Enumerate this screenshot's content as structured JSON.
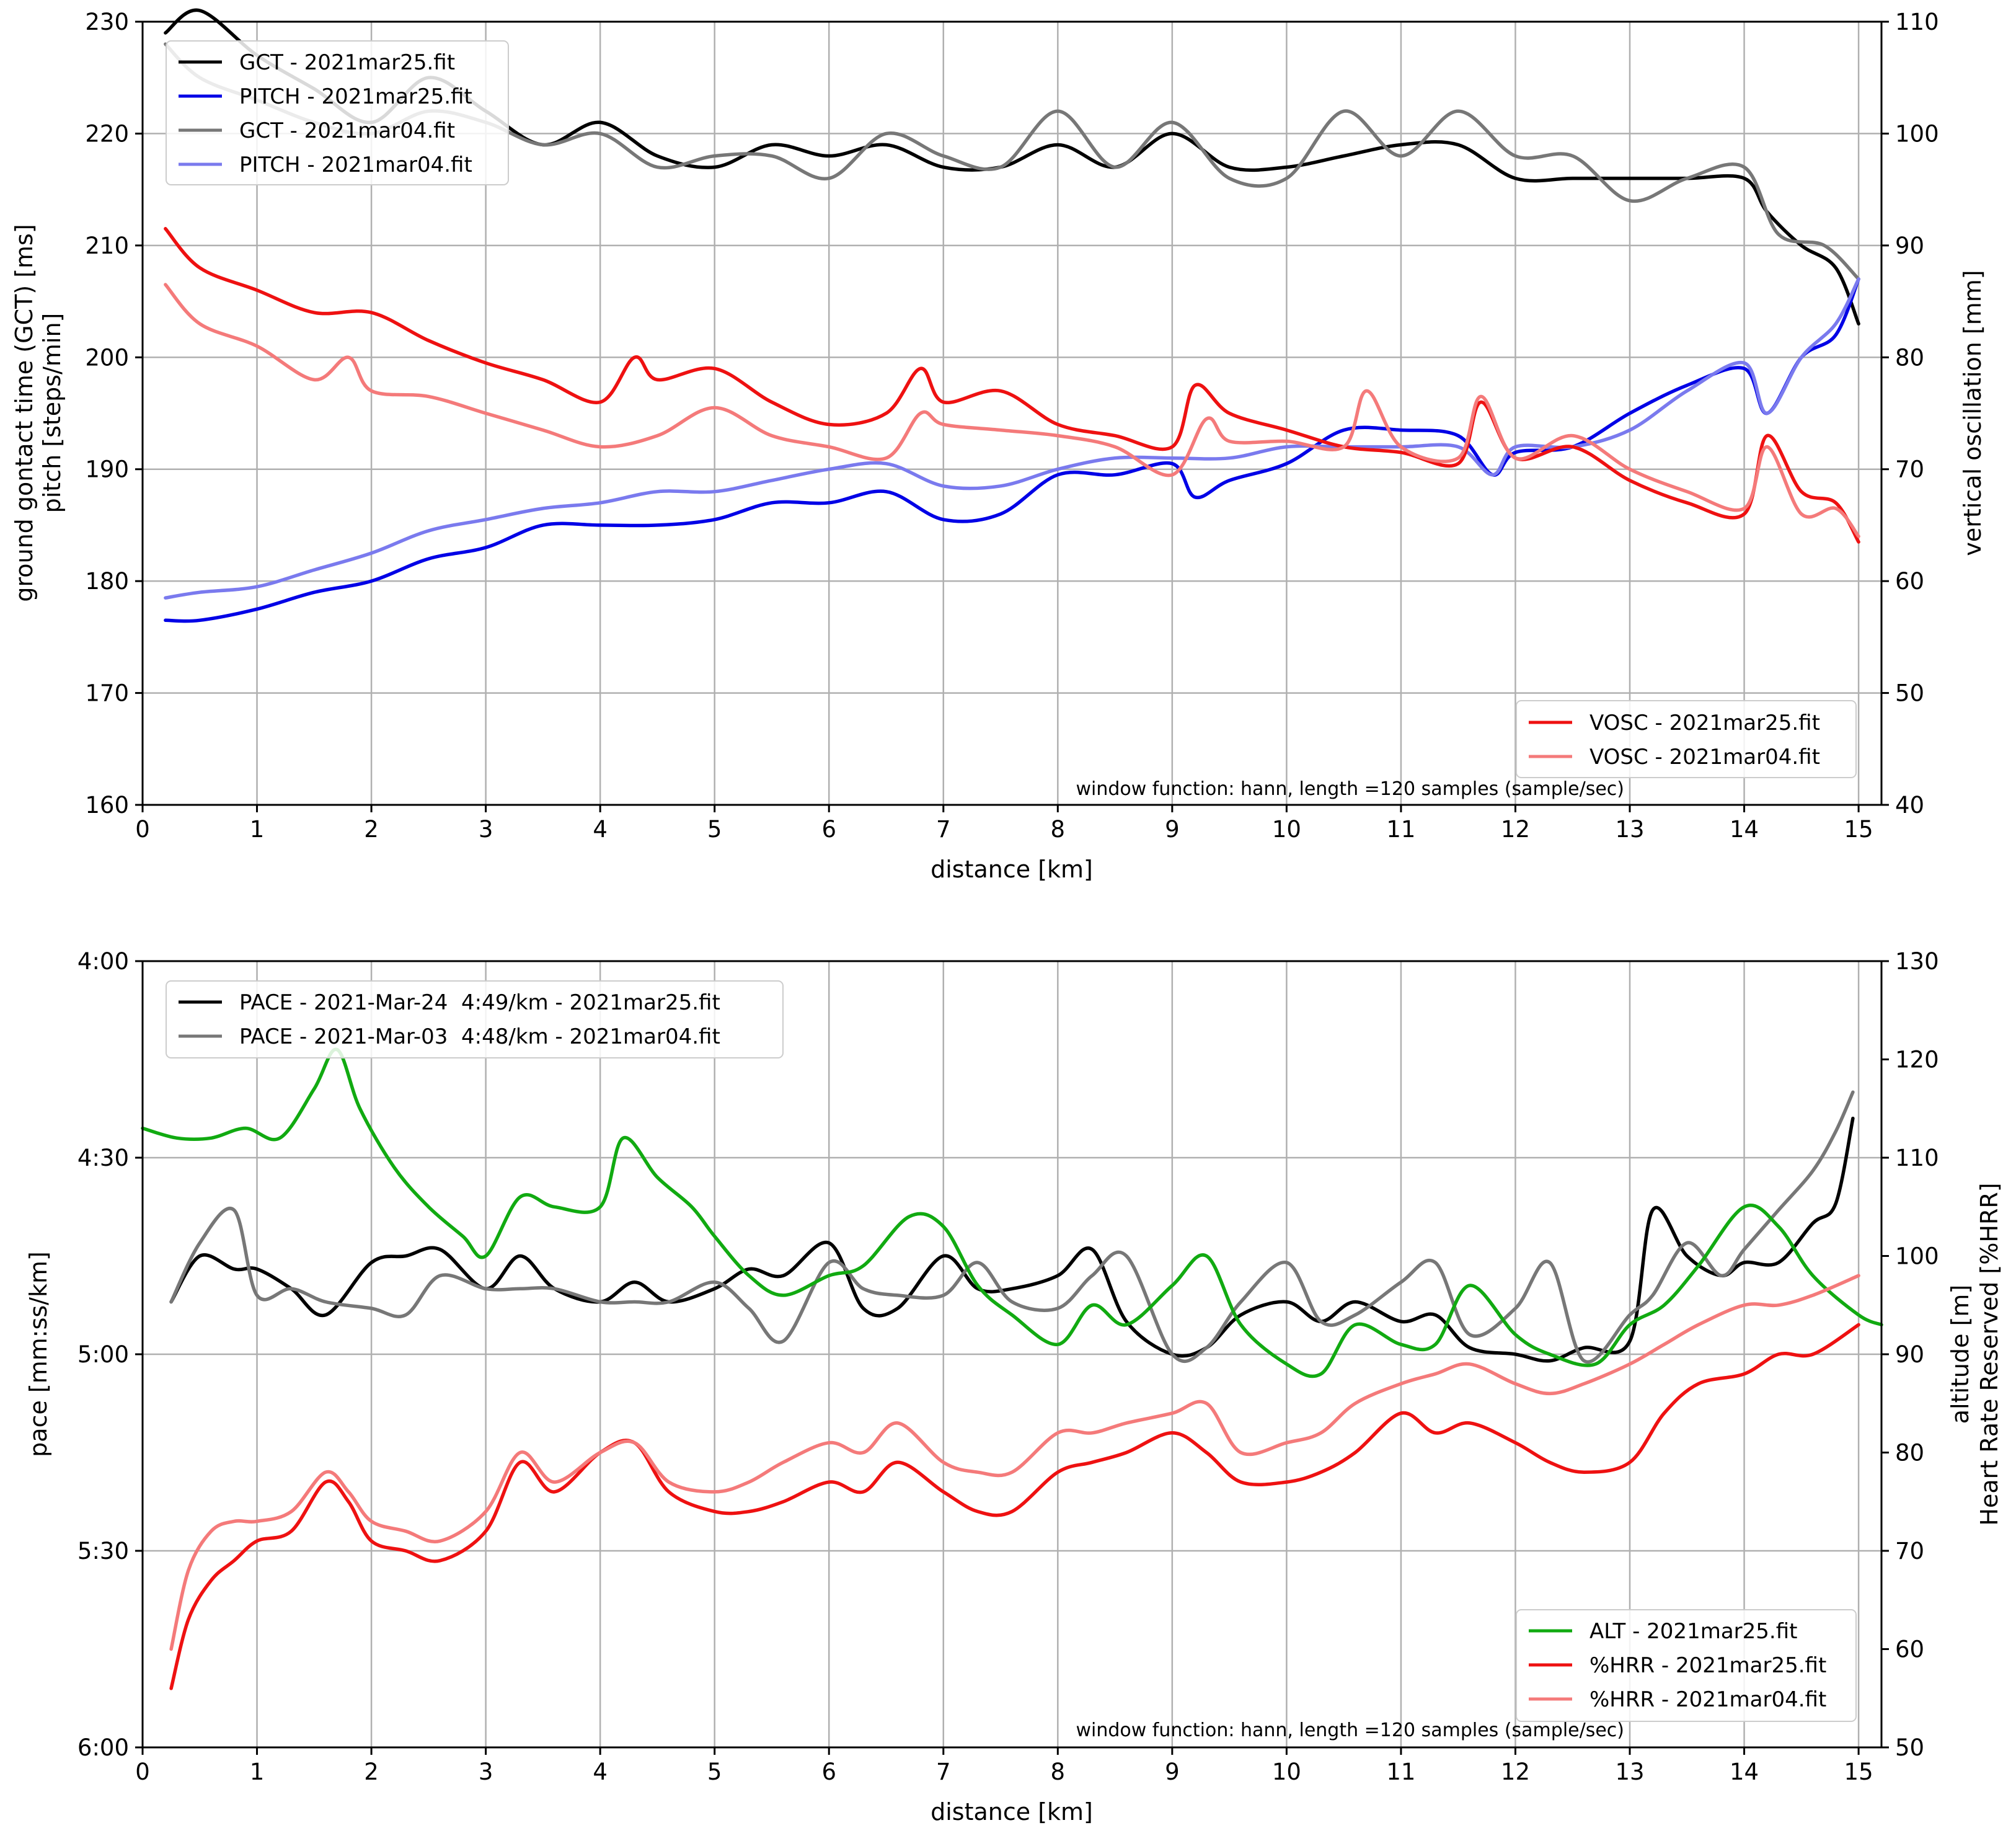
{
  "colors": {
    "black": "#000000",
    "blue": "#0000e6",
    "gray": "#777777",
    "lightblue": "#7a7aee",
    "red": "#ee1111",
    "lightred": "#f47a7a",
    "green": "#11aa11",
    "grid": "#b0b0b0"
  },
  "chart_data": [
    {
      "type": "line",
      "xlabel": "distance [km]",
      "ylabel_left": [
        "ground gontact time (GCT) [ms]",
        "pitch [steps/min]"
      ],
      "ylabel_right": "vertical oscillation [mm]",
      "xlim": [
        0,
        15.2
      ],
      "ylim_left": [
        160,
        230
      ],
      "ylim_right": [
        40,
        110
      ],
      "xticks": [
        0,
        1,
        2,
        3,
        4,
        5,
        6,
        7,
        8,
        9,
        10,
        11,
        12,
        13,
        14,
        15
      ],
      "yticks_left": [
        160,
        170,
        180,
        190,
        200,
        210,
        220,
        230
      ],
      "yticks_right": [
        40,
        50,
        60,
        70,
        80,
        90,
        100,
        110
      ],
      "grid": true,
      "legend_left_placement": "upper-left",
      "legend_right_placement": "lower-right",
      "annotation": "window function: hann, length =120 samples (sample/sec)",
      "series": [
        {
          "name": "GCT - 2021mar25.fit",
          "color": "black",
          "axis": "left",
          "x": [
            0.2,
            0.5,
            1.0,
            1.5,
            2.0,
            2.5,
            3.0,
            3.5,
            4.0,
            4.5,
            5.0,
            5.5,
            6.0,
            6.5,
            7.0,
            7.5,
            8.0,
            8.5,
            9.0,
            9.5,
            10.0,
            10.5,
            11.0,
            11.5,
            12.0,
            12.5,
            13.0,
            13.5,
            14.0,
            14.2,
            14.5,
            14.8,
            15.0
          ],
          "y": [
            229,
            231,
            227,
            224,
            221,
            225,
            222,
            219,
            221,
            218,
            217,
            219,
            218,
            219,
            217,
            217,
            219,
            217,
            220,
            217,
            217,
            218,
            219,
            219,
            216,
            216,
            216,
            216,
            216,
            213,
            210,
            208,
            203
          ]
        },
        {
          "name": "PITCH - 2021mar25.fit",
          "color": "blue",
          "axis": "left",
          "x": [
            0.2,
            0.5,
            1.0,
            1.5,
            2.0,
            2.5,
            3.0,
            3.5,
            4.0,
            4.5,
            5.0,
            5.5,
            6.0,
            6.5,
            7.0,
            7.5,
            8.0,
            8.5,
            9.0,
            9.2,
            9.5,
            10.0,
            10.5,
            11.0,
            11.5,
            11.8,
            12.0,
            12.5,
            13.0,
            13.5,
            14.0,
            14.2,
            14.5,
            14.8,
            15.0
          ],
          "y": [
            176.5,
            176.5,
            177.5,
            179,
            180,
            182,
            183,
            185,
            185,
            185,
            185.5,
            187,
            187,
            188,
            185.5,
            186,
            189.5,
            189.5,
            190.5,
            187.5,
            189,
            190.5,
            193.5,
            193.5,
            193,
            189.5,
            191.5,
            192,
            195,
            197.5,
            199,
            195,
            200,
            202,
            207
          ]
        },
        {
          "name": "GCT - 2021mar04.fit",
          "color": "gray",
          "axis": "left",
          "x": [
            0.2,
            0.5,
            1.0,
            1.5,
            2.0,
            2.5,
            3.0,
            3.5,
            4.0,
            4.5,
            5.0,
            5.5,
            6.0,
            6.5,
            7.0,
            7.5,
            8.0,
            8.5,
            9.0,
            9.5,
            10.0,
            10.5,
            11.0,
            11.5,
            12.0,
            12.5,
            13.0,
            13.5,
            14.0,
            14.3,
            14.7,
            15.0
          ],
          "y": [
            228,
            225,
            223,
            221,
            220,
            222,
            221,
            219,
            220,
            217,
            218,
            218,
            216,
            220,
            218,
            217,
            222,
            217,
            221,
            216,
            216,
            222,
            218,
            222,
            218,
            218,
            214,
            216,
            217,
            211,
            210,
            207
          ]
        },
        {
          "name": "PITCH - 2021mar04.fit",
          "color": "lightblue",
          "axis": "left",
          "x": [
            0.2,
            0.5,
            1.0,
            1.5,
            2.0,
            2.5,
            3.0,
            3.5,
            4.0,
            4.5,
            5.0,
            5.5,
            6.0,
            6.5,
            7.0,
            7.5,
            8.0,
            8.5,
            9.0,
            9.5,
            10.0,
            10.5,
            11.0,
            11.5,
            11.8,
            12.0,
            12.5,
            13.0,
            13.5,
            14.0,
            14.2,
            14.5,
            14.8,
            15.0
          ],
          "y": [
            178.5,
            179,
            179.5,
            181,
            182.5,
            184.5,
            185.5,
            186.5,
            187,
            188,
            188,
            189,
            190,
            190.5,
            188.5,
            188.5,
            190,
            191,
            191,
            191,
            192,
            192,
            192,
            192,
            189.5,
            192,
            192,
            193.5,
            197,
            199.5,
            195,
            200,
            203,
            207
          ]
        },
        {
          "name": "VOSC - 2021mar25.fit",
          "color": "red",
          "axis": "right",
          "x": [
            0.2,
            0.5,
            1.0,
            1.5,
            2.0,
            2.5,
            3.0,
            3.5,
            4.0,
            4.3,
            4.5,
            5.0,
            5.5,
            6.0,
            6.5,
            6.8,
            7.0,
            7.5,
            8.0,
            8.5,
            9.0,
            9.2,
            9.5,
            10.0,
            10.5,
            11.0,
            11.5,
            11.7,
            12.0,
            12.5,
            13.0,
            13.5,
            14.0,
            14.2,
            14.5,
            14.8,
            15.0
          ],
          "y": [
            91.5,
            88,
            86,
            84,
            84,
            81.5,
            79.5,
            78,
            76,
            80,
            78,
            79,
            76,
            74,
            75,
            79,
            76,
            77,
            74,
            73,
            72,
            77.5,
            75,
            73.5,
            72,
            71.5,
            70.5,
            76,
            71,
            72,
            69,
            67,
            66,
            73,
            68,
            67,
            63.5
          ]
        },
        {
          "name": "VOSC - 2021mar04.fit",
          "color": "lightred",
          "axis": "right",
          "x": [
            0.2,
            0.5,
            1.0,
            1.5,
            1.8,
            2.0,
            2.5,
            3.0,
            3.5,
            4.0,
            4.5,
            5.0,
            5.5,
            6.0,
            6.5,
            6.8,
            7.0,
            7.5,
            8.0,
            8.5,
            9.0,
            9.3,
            9.5,
            10.0,
            10.5,
            10.7,
            11.0,
            11.5,
            11.7,
            12.0,
            12.5,
            13.0,
            13.5,
            14.0,
            14.2,
            14.5,
            14.8,
            15.0
          ],
          "y": [
            86.5,
            83,
            81,
            78,
            80,
            77,
            76.5,
            75,
            73.5,
            72,
            73,
            75.5,
            73,
            72,
            71,
            75,
            74,
            73.5,
            73,
            72,
            69.5,
            74.5,
            72.5,
            72.5,
            72,
            77,
            72,
            71,
            76.5,
            71,
            73,
            70,
            68,
            66.5,
            72,
            66,
            66.5,
            64
          ]
        }
      ]
    },
    {
      "type": "line",
      "xlabel": "distance [km]",
      "ylabel_left": "pace [mm:ss/km]",
      "ylabel_right": [
        "altitude [m]",
        "Heart Rate Reserved [%HRR]"
      ],
      "xlim": [
        0,
        15.2
      ],
      "ylim_left_seconds": [
        240,
        360
      ],
      "ylim_left_inverted": true,
      "ylim_right": [
        50,
        130
      ],
      "xticks": [
        0,
        1,
        2,
        3,
        4,
        5,
        6,
        7,
        8,
        9,
        10,
        11,
        12,
        13,
        14,
        15
      ],
      "yticks_left": [
        "4:00",
        "4:30",
        "5:00",
        "5:30",
        "6:00"
      ],
      "yticks_left_seconds": [
        240,
        270,
        300,
        330,
        360
      ],
      "yticks_right": [
        50,
        60,
        70,
        80,
        90,
        100,
        110,
        120,
        130
      ],
      "grid": true,
      "legend_left_placement": "upper-left",
      "legend_right_placement": "lower-right",
      "annotation": "window function: hann, length =120 samples (sample/sec)",
      "series": [
        {
          "name": "PACE - 2021-Mar-24  4:49/km - 2021mar25.fit",
          "color": "black",
          "axis": "left",
          "x": [
            0.25,
            0.5,
            0.8,
            1.0,
            1.3,
            1.6,
            2.0,
            2.3,
            2.6,
            3.0,
            3.3,
            3.6,
            4.0,
            4.3,
            4.6,
            5.0,
            5.3,
            5.6,
            6.0,
            6.3,
            6.6,
            7.0,
            7.3,
            7.6,
            8.0,
            8.3,
            8.6,
            9.0,
            9.3,
            9.6,
            10.0,
            10.3,
            10.6,
            11.0,
            11.3,
            11.6,
            12.0,
            12.3,
            12.6,
            13.0,
            13.2,
            13.5,
            13.8,
            14.0,
            14.3,
            14.6,
            14.8,
            14.95
          ],
          "y_seconds": [
            292,
            285,
            287,
            287,
            290,
            294,
            286,
            285,
            284,
            290,
            285,
            290,
            292,
            289,
            292,
            290,
            287,
            288,
            283,
            293,
            293,
            285,
            290,
            290,
            288,
            284,
            295,
            300,
            299,
            294,
            292,
            295,
            292,
            295,
            294,
            299,
            300,
            301,
            299,
            298,
            278,
            285,
            288,
            286,
            286,
            280,
            277,
            264
          ]
        },
        {
          "name": "PACE - 2021-Mar-03  4:48/km - 2021mar04.fit",
          "color": "gray",
          "axis": "left",
          "x": [
            0.25,
            0.5,
            0.8,
            1.0,
            1.3,
            1.6,
            2.0,
            2.3,
            2.6,
            3.0,
            3.3,
            3.6,
            4.0,
            4.3,
            4.6,
            5.0,
            5.3,
            5.6,
            6.0,
            6.3,
            6.6,
            7.0,
            7.3,
            7.6,
            8.0,
            8.3,
            8.6,
            9.0,
            9.3,
            9.6,
            10.0,
            10.3,
            10.6,
            11.0,
            11.3,
            11.6,
            12.0,
            12.3,
            12.6,
            13.0,
            13.2,
            13.5,
            13.8,
            14.0,
            14.3,
            14.6,
            14.8,
            14.95
          ],
          "y_seconds": [
            292,
            283,
            278,
            291,
            290,
            292,
            293,
            294,
            288,
            290,
            290,
            290,
            292,
            292,
            292,
            289,
            293,
            298,
            286,
            290,
            291,
            291,
            286,
            292,
            293,
            288,
            285,
            300,
            299,
            292,
            286,
            295,
            294,
            289,
            286,
            297,
            293,
            286,
            301,
            294,
            291,
            283,
            288,
            284,
            278,
            272,
            266,
            260
          ]
        },
        {
          "name": "ALT - 2021mar25.fit",
          "color": "green",
          "axis": "right",
          "x": [
            0,
            0.3,
            0.6,
            0.9,
            1.2,
            1.5,
            1.7,
            1.9,
            2.2,
            2.5,
            2.8,
            3.0,
            3.3,
            3.6,
            4.0,
            4.2,
            4.5,
            4.8,
            5.0,
            5.3,
            5.6,
            6.0,
            6.3,
            6.7,
            7.0,
            7.3,
            7.6,
            8.0,
            8.3,
            8.6,
            9.0,
            9.3,
            9.6,
            10.0,
            10.3,
            10.6,
            11.0,
            11.3,
            11.6,
            12.0,
            12.3,
            12.7,
            13.0,
            13.3,
            13.6,
            14.0,
            14.3,
            14.6,
            15.0,
            15.2
          ],
          "y": [
            113,
            112,
            112,
            113,
            112,
            117,
            121,
            115,
            109,
            105,
            102,
            100,
            106,
            105,
            105,
            112,
            108,
            105,
            102,
            98,
            96,
            98,
            99,
            104,
            103,
            97,
            94,
            91,
            95,
            93,
            97,
            100,
            93,
            89,
            88,
            93,
            91,
            91,
            97,
            92,
            90,
            89,
            93,
            95,
            99,
            105,
            103,
            98,
            94,
            93
          ]
        },
        {
          "name": "%HRR - 2021mar25.fit",
          "color": "red",
          "axis": "right",
          "x": [
            0.25,
            0.4,
            0.6,
            0.8,
            1.0,
            1.3,
            1.6,
            1.8,
            2.0,
            2.3,
            2.6,
            3.0,
            3.3,
            3.6,
            4.0,
            4.3,
            4.6,
            5.0,
            5.3,
            5.6,
            6.0,
            6.3,
            6.6,
            7.0,
            7.3,
            7.6,
            8.0,
            8.3,
            8.6,
            9.0,
            9.3,
            9.6,
            10.0,
            10.3,
            10.6,
            11.0,
            11.3,
            11.6,
            12.0,
            12.3,
            12.6,
            13.0,
            13.3,
            13.6,
            14.0,
            14.3,
            14.6,
            15.0
          ],
          "y": [
            56,
            63,
            67,
            69,
            71,
            72,
            77,
            75,
            71,
            70,
            69,
            72,
            79,
            76,
            80,
            81,
            76,
            74,
            74,
            75,
            77,
            76,
            79,
            76,
            74,
            74,
            78,
            79,
            80,
            82,
            80,
            77,
            77,
            78,
            80,
            84,
            82,
            83,
            81,
            79,
            78,
            79,
            84,
            87,
            88,
            90,
            90,
            93
          ]
        },
        {
          "name": "%HRR - 2021mar04.fit",
          "color": "lightred",
          "axis": "right",
          "x": [
            0.25,
            0.4,
            0.6,
            0.8,
            1.0,
            1.3,
            1.6,
            1.8,
            2.0,
            2.3,
            2.6,
            3.0,
            3.3,
            3.6,
            4.0,
            4.3,
            4.6,
            5.0,
            5.3,
            5.6,
            6.0,
            6.3,
            6.6,
            7.0,
            7.3,
            7.6,
            8.0,
            8.3,
            8.6,
            9.0,
            9.3,
            9.6,
            10.0,
            10.3,
            10.6,
            11.0,
            11.3,
            11.6,
            12.0,
            12.3,
            12.6,
            13.0,
            13.3,
            13.6,
            14.0,
            14.3,
            14.6,
            15.0
          ],
          "y": [
            60,
            68,
            72,
            73,
            73,
            74,
            78,
            76,
            73,
            72,
            71,
            74,
            80,
            77,
            80,
            81,
            77,
            76,
            77,
            79,
            81,
            80,
            83,
            79,
            78,
            78,
            82,
            82,
            83,
            84,
            85,
            80,
            81,
            82,
            85,
            87,
            88,
            89,
            87,
            86,
            87,
            89,
            91,
            93,
            95,
            95,
            96,
            98
          ]
        }
      ]
    }
  ]
}
